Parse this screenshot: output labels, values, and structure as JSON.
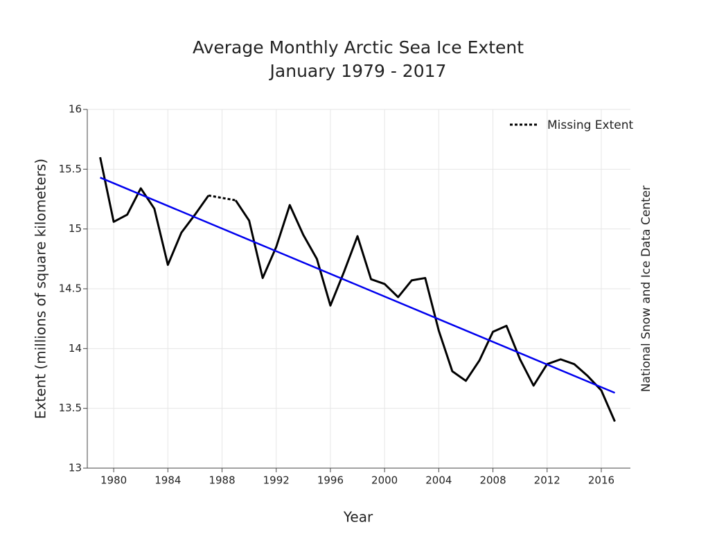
{
  "chart_data": {
    "type": "line",
    "title": "Average Monthly Arctic Sea Ice Extent",
    "subtitle": "January 1979 - 2017",
    "x_label": "Year",
    "y_label": "Extent (millions of square kilometers)",
    "source": "National Snow and Ice Data Center",
    "x": [
      1979,
      1980,
      1981,
      1982,
      1983,
      1984,
      1985,
      1986,
      1987,
      1988,
      1989,
      1990,
      1991,
      1992,
      1993,
      1994,
      1995,
      1996,
      1997,
      1998,
      1999,
      2000,
      2001,
      2002,
      2003,
      2004,
      2005,
      2006,
      2007,
      2008,
      2009,
      2010,
      2011,
      2012,
      2013,
      2014,
      2015,
      2016,
      2017
    ],
    "series": [
      {
        "color": "#000000",
        "values": [
          15.6,
          15.06,
          15.12,
          15.34,
          15.17,
          14.7,
          14.97,
          15.12,
          15.28,
          null,
          15.24,
          15.07,
          14.59,
          14.85,
          15.2,
          14.95,
          14.75,
          14.36,
          14.64,
          14.94,
          14.58,
          14.54,
          14.43,
          14.57,
          14.59,
          14.15,
          13.81,
          13.73,
          13.9,
          14.14,
          14.19,
          13.91,
          13.69,
          13.87,
          13.91,
          13.87,
          13.77,
          13.65,
          13.39
        ]
      }
    ],
    "trend": {
      "color": "#0000ee",
      "x": [
        1979,
        2017
      ],
      "values": [
        15.43,
        13.63
      ]
    },
    "gap_legend": "Missing Extent",
    "xlim": [
      1978.05,
      2018.15
    ],
    "ylim": [
      13,
      16
    ],
    "xticks": [
      1980,
      1984,
      1988,
      1992,
      1996,
      2000,
      2004,
      2008,
      2012,
      2016
    ],
    "yticks": [
      13,
      13.5,
      14,
      14.5,
      15,
      15.5,
      16
    ],
    "grid": true
  }
}
